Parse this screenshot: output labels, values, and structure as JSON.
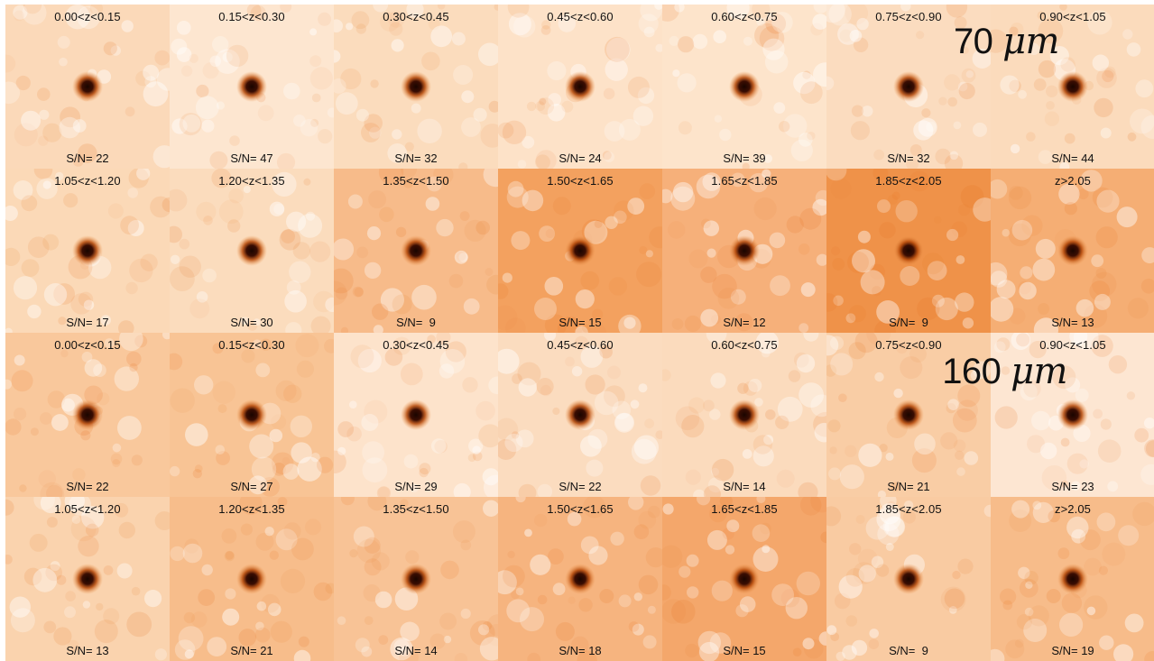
{
  "panels": [
    {
      "band": {
        "value": "70",
        "unit": "μm"
      },
      "rows": [
        {
          "tiles": [
            {
              "z": "0.00<z<0.15",
              "sn": "S/N= 22",
              "bg": "#fbd9b9"
            },
            {
              "z": "0.15<z<0.30",
              "sn": "S/N= 47",
              "bg": "#fde6d0"
            },
            {
              "z": "0.30<z<0.45",
              "sn": "S/N= 32",
              "bg": "#fbdcbd"
            },
            {
              "z": "0.45<z<0.60",
              "sn": "S/N= 24",
              "bg": "#fde2c8"
            },
            {
              "z": "0.60<z<0.75",
              "sn": "S/N= 39",
              "bg": "#fde4cb"
            },
            {
              "z": "0.75<z<0.90",
              "sn": "S/N= 32",
              "bg": "#fbdcbf"
            },
            {
              "z": "0.90<z<1.05",
              "sn": "S/N= 44",
              "bg": "#fbdbbc"
            }
          ]
        },
        {
          "tiles": [
            {
              "z": "1.05<z<1.20",
              "sn": "S/N= 17",
              "bg": "#fbd9b7"
            },
            {
              "z": "1.20<z<1.35",
              "sn": "S/N= 30",
              "bg": "#fbdcbd"
            },
            {
              "z": "1.35<z<1.50",
              "sn": "S/N=  9",
              "bg": "#f7bb8a"
            },
            {
              "z": "1.50<z<1.65",
              "sn": "S/N= 15",
              "bg": "#f3a15f"
            },
            {
              "z": "1.65<z<1.85",
              "sn": "S/N= 12",
              "bg": "#f6b07a"
            },
            {
              "z": "1.85<z<2.05",
              "sn": "S/N=  9",
              "bg": "#ef9249"
            },
            {
              "z": "z>2.05",
              "sn": "S/N= 13",
              "bg": "#f5ae74"
            }
          ]
        }
      ]
    },
    {
      "band": {
        "value": "160",
        "unit": "μm"
      },
      "rows": [
        {
          "tiles": [
            {
              "z": "0.00<z<0.15",
              "sn": "S/N= 22",
              "bg": "#f9c89c"
            },
            {
              "z": "0.15<z<0.30",
              "sn": "S/N= 27",
              "bg": "#f8c495"
            },
            {
              "z": "0.30<z<0.45",
              "sn": "S/N= 29",
              "bg": "#fde3cb"
            },
            {
              "z": "0.45<z<0.60",
              "sn": "S/N= 22",
              "bg": "#fbdcbf"
            },
            {
              "z": "0.60<z<0.75",
              "sn": "S/N= 14",
              "bg": "#fbdbbd"
            },
            {
              "z": "0.75<z<0.90",
              "sn": "S/N= 21",
              "bg": "#f9cda5"
            },
            {
              "z": "0.90<z<1.05",
              "sn": "S/N= 23",
              "bg": "#fde6d2"
            }
          ]
        },
        {
          "tiles": [
            {
              "z": "1.05<z<1.20",
              "sn": "S/N= 13",
              "bg": "#fad3ae"
            },
            {
              "z": "1.20<z<1.35",
              "sn": "S/N= 21",
              "bg": "#f7bd8b"
            },
            {
              "z": "1.35<z<1.50",
              "sn": "S/N= 14",
              "bg": "#f8c396"
            },
            {
              "z": "1.50<z<1.65",
              "sn": "S/N= 18",
              "bg": "#f6b47f"
            },
            {
              "z": "1.65<z<1.85",
              "sn": "S/N= 15",
              "bg": "#f4a76b"
            },
            {
              "z": "1.85<z<2.05",
              "sn": "S/N=  9",
              "bg": "#f9cba2"
            },
            {
              "z": "z>2.05",
              "sn": "S/N= 19",
              "bg": "#f7bc8a"
            }
          ]
        }
      ]
    }
  ]
}
